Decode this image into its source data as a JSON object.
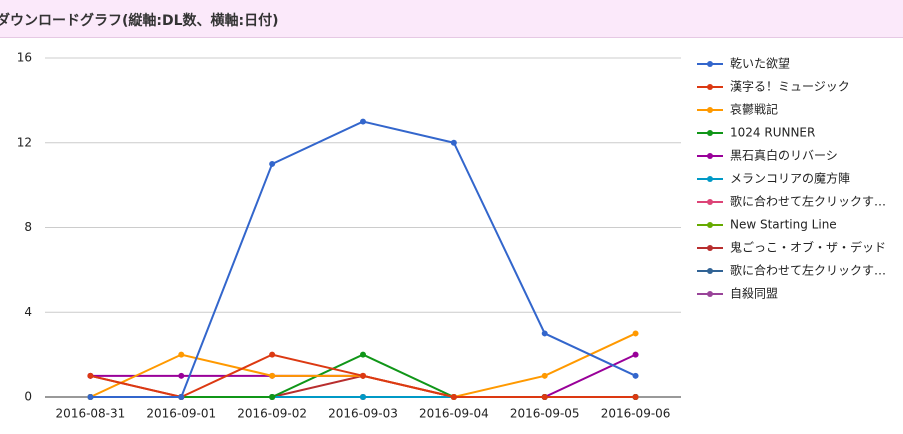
{
  "header": {
    "title": "ダウンロードグラフ(縦軸:DL数、横軸:日付)"
  },
  "chart_data": {
    "type": "line",
    "categories": [
      "2016-08-31",
      "2016-09-01",
      "2016-09-02",
      "2016-09-03",
      "2016-09-04",
      "2016-09-05",
      "2016-09-06"
    ],
    "ylim": [
      0,
      16
    ],
    "yticks": [
      0,
      4,
      8,
      12,
      16
    ],
    "grid": true,
    "legend": "right",
    "series": [
      {
        "name": "乾いた欲望",
        "color": "#3366cc",
        "values": [
          0,
          0,
          11,
          13,
          12,
          3,
          1
        ]
      },
      {
        "name": "漢字る！ミュージック",
        "color": "#dc3912",
        "values": [
          1,
          0,
          2,
          1,
          0,
          0,
          0
        ]
      },
      {
        "name": "哀鬱戦記",
        "color": "#ff9900",
        "values": [
          0,
          2,
          1,
          1,
          0,
          1,
          3
        ]
      },
      {
        "name": "1024 RUNNER",
        "color": "#109618",
        "values": [
          0,
          0,
          0,
          2,
          0,
          0,
          0
        ]
      },
      {
        "name": "黒石真白のリバーシ",
        "color": "#990099",
        "values": [
          1,
          1,
          1,
          1,
          0,
          0,
          2
        ]
      },
      {
        "name": "メランコリアの魔方陣",
        "color": "#0099c6",
        "values": [
          0,
          0,
          0,
          0,
          0,
          0,
          0
        ]
      },
      {
        "name": "歌に合わせて左クリックす…",
        "color": "#dd4477",
        "values": [
          0,
          0,
          0,
          0,
          0,
          0,
          0
        ]
      },
      {
        "name": "New Starting Line",
        "color": "#66aa00",
        "values": [
          0,
          0,
          0,
          0,
          0,
          0,
          0
        ]
      },
      {
        "name": "鬼ごっこ・オブ・ザ・デッド",
        "color": "#b82e2e",
        "values": [
          1,
          0,
          0,
          1,
          0,
          0,
          0
        ]
      },
      {
        "name": "歌に合わせて左クリックす…",
        "color": "#316395",
        "values": [
          0,
          0,
          0,
          0,
          0,
          0,
          0
        ]
      },
      {
        "name": "自殺同盟",
        "color": "#994499",
        "values": [
          0,
          0,
          0,
          0,
          0,
          0,
          0
        ]
      }
    ]
  }
}
